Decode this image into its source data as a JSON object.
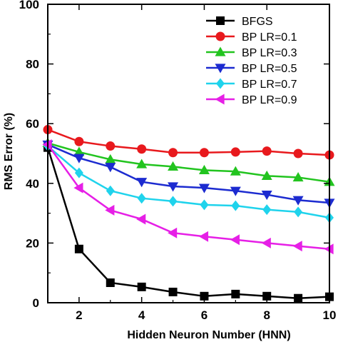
{
  "chart_data": {
    "type": "line",
    "xlabel": "Hidden Neuron Number (HNN)",
    "ylabel": "RMS Error (%)",
    "xlim": [
      1,
      10
    ],
    "ylim": [
      0,
      100
    ],
    "x_ticks": [
      "2",
      "4",
      "6",
      "8",
      "10"
    ],
    "y_ticks": [
      "0",
      "20",
      "40",
      "60",
      "80",
      "100"
    ],
    "grid": false,
    "legend": "top-right",
    "x": [
      1,
      2,
      3,
      4,
      5,
      6,
      7,
      8,
      9,
      10
    ],
    "series": [
      {
        "name": "BFGS",
        "color": "#000000",
        "marker": "square",
        "values": [
          52,
          18,
          6.7,
          5.3,
          3.6,
          2.2,
          2.9,
          2.2,
          1.5,
          2.0
        ]
      },
      {
        "name": "BP LR=0.1",
        "color": "#e8191d",
        "marker": "circle",
        "values": [
          58,
          54,
          52.5,
          51.5,
          50.3,
          50.3,
          50.5,
          50.8,
          50.0,
          49.5
        ]
      },
      {
        "name": "BP LR=0.3",
        "color": "#22c41f",
        "marker": "triangle-up",
        "values": [
          53.5,
          50.5,
          48,
          46.4,
          45.6,
          44.4,
          44.0,
          42.5,
          42.0,
          40.5
        ]
      },
      {
        "name": "BP LR=0.5",
        "color": "#1c2bd0",
        "marker": "triangle-down",
        "values": [
          53,
          48.5,
          45.5,
          40.5,
          39.0,
          38.5,
          37.5,
          36.2,
          34.4,
          33.5
        ]
      },
      {
        "name": "BP LR=0.7",
        "color": "#1fd3ec",
        "marker": "diamond",
        "values": [
          52.5,
          43.5,
          37.5,
          35.0,
          34.0,
          32.8,
          32.5,
          31.2,
          30.4,
          28.5
        ]
      },
      {
        "name": "BP LR=0.9",
        "color": "#e61fe6",
        "marker": "triangle-left",
        "values": [
          53,
          38.5,
          31,
          28,
          23.4,
          22.2,
          21.1,
          20.0,
          19.0,
          18.0
        ]
      }
    ]
  }
}
